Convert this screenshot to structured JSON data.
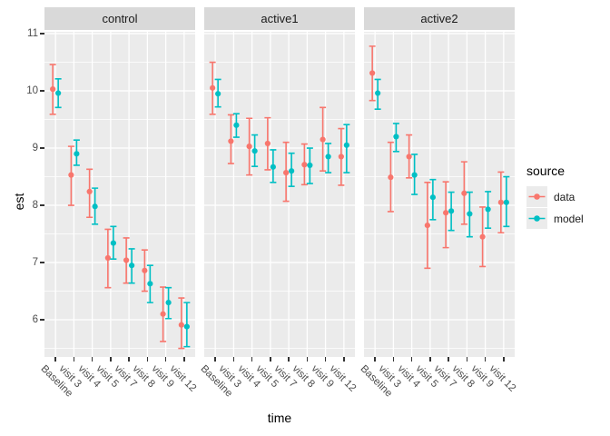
{
  "figure": {
    "y_axis": {
      "title": "est",
      "ticks": [
        11,
        10,
        9,
        8,
        7,
        6
      ]
    },
    "x_axis": {
      "title": "time"
    },
    "legend": {
      "title": "source",
      "items": [
        {
          "label": "data",
          "color": "#F8766D"
        },
        {
          "label": "model",
          "color": "#00BFC4"
        }
      ]
    },
    "colors": {
      "panel_background": "#EBEBEB",
      "strip_background": "#D9D9D9",
      "gridline": "#FFFFFF",
      "tick_text": "#4d4d4d",
      "series_data": "#F8766D",
      "series_model": "#00BFC4"
    }
  },
  "chart_data": {
    "type": "scatter",
    "subtype": "pointrange_errorbar_dodged_faceted",
    "title": "",
    "xlabel": "time",
    "ylabel": "est",
    "ylim": [
      5.35,
      11.03
    ],
    "yticks_major": [
      6,
      7,
      8,
      9,
      10,
      11
    ],
    "yticks_minor": [
      5.5,
      6.5,
      7.5,
      8.5,
      9.5,
      10.5
    ],
    "grid": true,
    "legend_title": "source",
    "legend_position": "right",
    "categories": [
      "Baseline",
      "visit 3",
      "visit 4",
      "visit 5",
      "visit 7",
      "visit 8",
      "visit 9",
      "visit 12"
    ],
    "facets": [
      {
        "label": "control",
        "series": [
          {
            "name": "data",
            "color": "#F8766D",
            "est": [
              10.03,
              8.53,
              8.24,
              7.08,
              7.04,
              6.86,
              6.1,
              5.91
            ],
            "lo": [
              9.59,
              8.0,
              7.79,
              6.56,
              6.64,
              6.5,
              5.62,
              5.5
            ],
            "hi": [
              10.46,
              9.03,
              8.63,
              7.58,
              7.43,
              7.22,
              6.57,
              6.38
            ]
          },
          {
            "name": "model",
            "color": "#00BFC4",
            "est": [
              9.96,
              8.9,
              7.98,
              7.34,
              6.95,
              6.63,
              6.3,
              5.88
            ],
            "lo": [
              9.71,
              8.7,
              7.67,
              7.06,
              6.64,
              6.3,
              6.02,
              5.53
            ],
            "hi": [
              10.21,
              9.14,
              8.3,
              7.63,
              7.24,
              6.95,
              6.56,
              6.3
            ]
          }
        ]
      },
      {
        "label": "active1",
        "series": [
          {
            "name": "data",
            "color": "#F8766D",
            "est": [
              10.05,
              9.12,
              9.03,
              9.08,
              8.57,
              8.71,
              9.15,
              8.85
            ],
            "lo": [
              9.59,
              8.73,
              8.53,
              8.62,
              8.07,
              8.36,
              8.6,
              8.35
            ],
            "hi": [
              10.5,
              9.58,
              9.52,
              9.53,
              9.1,
              9.07,
              9.71,
              9.34
            ]
          },
          {
            "name": "model",
            "color": "#00BFC4",
            "est": [
              9.95,
              9.4,
              8.95,
              8.67,
              8.6,
              8.7,
              8.85,
              9.05
            ],
            "lo": [
              9.72,
              9.19,
              8.68,
              8.4,
              8.33,
              8.38,
              8.57,
              8.57
            ],
            "hi": [
              10.2,
              9.6,
              9.23,
              8.97,
              8.91,
              9.0,
              9.08,
              9.41
            ]
          }
        ]
      },
      {
        "label": "active2",
        "series": [
          {
            "name": "data",
            "color": "#F8766D",
            "est": [
              10.31,
              8.49,
              8.85,
              7.65,
              7.87,
              8.21,
              7.45,
              8.05
            ],
            "lo": [
              9.83,
              7.89,
              8.48,
              6.9,
              7.26,
              7.67,
              6.93,
              7.52
            ],
            "hi": [
              10.78,
              9.1,
              9.23,
              8.4,
              8.41,
              8.76,
              7.97,
              8.58
            ]
          },
          {
            "name": "model",
            "color": "#00BFC4",
            "est": [
              9.96,
              9.2,
              8.53,
              8.14,
              7.9,
              7.85,
              7.93,
              8.05
            ],
            "lo": [
              9.68,
              8.94,
              8.19,
              7.75,
              7.56,
              7.45,
              7.6,
              7.63
            ],
            "hi": [
              10.2,
              9.43,
              8.89,
              8.45,
              8.23,
              8.23,
              8.24,
              8.5
            ]
          }
        ]
      }
    ]
  }
}
